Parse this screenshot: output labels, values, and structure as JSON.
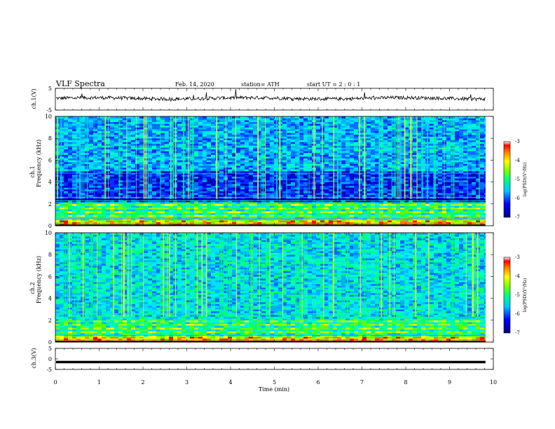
{
  "header": {
    "title": "VLF  Spectra",
    "date": "Feb. 14, 2020",
    "station": "station= ATH",
    "start_time": "start  UT  =   2  :  0   :  1"
  },
  "chart_data": [
    {
      "type": "line",
      "name": "ch1-waveform",
      "ylabel": "ch.1(V)",
      "ylim": [
        -5,
        5
      ],
      "yticks": [
        "5",
        "-5"
      ],
      "description_level_V": 0.4
    },
    {
      "type": "heatmap",
      "name": "ch1-spectrogram",
      "ylabel": "ch.1\nFrequency (kHz)",
      "ylabel_lines": [
        "ch.1",
        "Frequency (kHz)"
      ],
      "ylim": [
        0,
        10
      ],
      "yticks": [
        "0",
        "2",
        "4",
        "6",
        "8",
        "10"
      ],
      "colorbar": {
        "label": "log(PSD)(V²/Hz)",
        "range": [
          -7,
          -3
        ],
        "ticks": [
          "-3",
          "-4",
          "-5",
          "-6",
          "-7"
        ]
      }
    },
    {
      "type": "heatmap",
      "name": "ch2-spectrogram",
      "ylabel_lines": [
        "ch.2",
        "Frequency (kHz)"
      ],
      "ylim": [
        0,
        10
      ],
      "yticks": [
        "0",
        "2",
        "4",
        "6",
        "8",
        "10"
      ],
      "colorbar": {
        "label": "log(PSD)(V²/Hz)",
        "range": [
          -7,
          -3
        ],
        "ticks": [
          "-3",
          "-4",
          "-5",
          "-6",
          "-7"
        ]
      }
    },
    {
      "type": "line",
      "name": "ch3-waveform",
      "ylabel": "ch.3(V)",
      "ylim": [
        -5,
        5
      ],
      "yticks": [
        "5",
        "0",
        "-5"
      ],
      "description_level_V": -1.5
    }
  ],
  "xaxis": {
    "label": "Time  (min)",
    "range": [
      0,
      10
    ],
    "ticks": [
      "0",
      "1",
      "2",
      "3",
      "4",
      "5",
      "6",
      "7",
      "8",
      "9",
      "10"
    ],
    "data_end_min": 9.82
  },
  "colors": {
    "background": "#ffffff",
    "axis": "#000000",
    "spectrum_low": "#00007f",
    "spectrum_mid": "#00ffb0",
    "spectrum_high": "#ff0000"
  }
}
